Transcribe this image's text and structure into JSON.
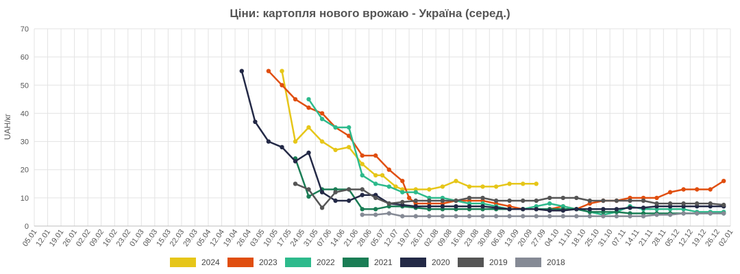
{
  "chart_data": {
    "type": "line",
    "title": "Ціни: картопля нового врожаю - Україна (серед.)",
    "ylabel": "UAH/кг",
    "ylim": [
      0,
      70
    ],
    "yticks": [
      0,
      10,
      20,
      30,
      40,
      50,
      60,
      70
    ],
    "grid": true,
    "legend_position": "bottom",
    "categories": [
      "05.01",
      "12.01",
      "19.01",
      "26.01",
      "02.02",
      "09.02",
      "16.02",
      "23.02",
      "01.03",
      "08.03",
      "15.03",
      "22.03",
      "29.03",
      "05.04",
      "12.04",
      "19.04",
      "26.04",
      "03.05",
      "10.05",
      "17.05",
      "24.05",
      "31.05",
      "07.06",
      "14.06",
      "21.06",
      "28.06",
      "05.07",
      "12.07",
      "19.07",
      "26.07",
      "02.08",
      "09.08",
      "16.08",
      "23.08",
      "30.08",
      "06.09",
      "13.09",
      "20.09",
      "27.09",
      "04.10",
      "11.10",
      "18.10",
      "25.10",
      "31.10",
      "07.11",
      "14.11",
      "21.11",
      "28.11",
      "05.12",
      "12.12",
      "19.12",
      "26.12",
      "02.01"
    ],
    "series": [
      {
        "name": "2024",
        "color": "#e6c619",
        "points": [
          [
            18.5,
            55
          ],
          [
            19.5,
            30
          ],
          [
            20.5,
            35
          ],
          [
            21.5,
            30
          ],
          [
            22.5,
            27
          ],
          [
            23.5,
            28
          ],
          [
            24.5,
            22
          ],
          [
            25.5,
            18
          ],
          [
            26,
            18
          ],
          [
            27,
            14
          ],
          [
            27.5,
            13
          ],
          [
            28.5,
            13
          ],
          [
            29.5,
            13
          ],
          [
            30.5,
            14
          ],
          [
            31.5,
            16
          ],
          [
            32.5,
            14
          ],
          [
            33.5,
            14
          ],
          [
            34.5,
            14
          ],
          [
            35.5,
            15
          ],
          [
            36.5,
            15
          ],
          [
            37.5,
            15
          ]
        ]
      },
      {
        "name": "2023",
        "color": "#e04e0f",
        "points": [
          [
            17.5,
            55
          ],
          [
            18.5,
            50
          ],
          [
            19.5,
            45
          ],
          [
            20.5,
            42
          ],
          [
            21.5,
            40
          ],
          [
            22.5,
            35
          ],
          [
            23.5,
            32
          ],
          [
            24.5,
            25
          ],
          [
            25.5,
            25
          ],
          [
            26.5,
            20
          ],
          [
            27.5,
            16
          ],
          [
            28,
            10
          ],
          [
            28.5,
            8
          ],
          [
            29.5,
            8
          ],
          [
            30.5,
            8
          ],
          [
            31.5,
            9
          ],
          [
            32.5,
            9
          ],
          [
            33.5,
            9
          ],
          [
            34.5,
            8
          ],
          [
            35.5,
            7
          ],
          [
            36.5,
            6
          ],
          [
            37.5,
            6
          ],
          [
            38.5,
            6
          ],
          [
            39.5,
            7
          ],
          [
            40.5,
            6
          ],
          [
            41.5,
            8
          ],
          [
            42.5,
            9
          ],
          [
            43.5,
            9
          ],
          [
            44.5,
            10
          ],
          [
            45.5,
            10
          ],
          [
            46.5,
            10
          ],
          [
            47.5,
            12
          ],
          [
            48.5,
            13
          ],
          [
            49.5,
            13
          ],
          [
            50.5,
            13
          ],
          [
            51.5,
            16
          ]
        ]
      },
      {
        "name": "2022",
        "color": "#2dba8c",
        "points": [
          [
            20.5,
            45
          ],
          [
            21.5,
            38
          ],
          [
            22.5,
            35
          ],
          [
            23.5,
            35
          ],
          [
            24.5,
            18
          ],
          [
            25.5,
            15
          ],
          [
            26.5,
            14
          ],
          [
            27.5,
            12
          ],
          [
            28.5,
            12
          ],
          [
            29.5,
            10
          ],
          [
            30.5,
            10
          ],
          [
            31.5,
            9
          ],
          [
            32.5,
            8
          ],
          [
            33.5,
            8
          ],
          [
            34.5,
            7
          ],
          [
            35.5,
            6
          ],
          [
            36.5,
            6
          ],
          [
            37.5,
            7
          ],
          [
            38.5,
            8
          ],
          [
            39.5,
            7
          ],
          [
            40.5,
            6
          ],
          [
            41.5,
            5
          ],
          [
            42.5,
            4
          ],
          [
            43.5,
            5
          ],
          [
            44.5,
            7
          ],
          [
            45.5,
            6
          ],
          [
            46.5,
            6
          ],
          [
            47.5,
            6
          ],
          [
            48.5,
            6
          ],
          [
            49.5,
            5
          ],
          [
            50.5,
            5
          ],
          [
            51.5,
            5
          ]
        ]
      },
      {
        "name": "2021",
        "color": "#1a7d55",
        "points": [
          [
            19.5,
            24
          ],
          [
            20.5,
            10.5
          ],
          [
            21.5,
            13
          ],
          [
            22.5,
            13
          ],
          [
            23.5,
            13
          ],
          [
            24.5,
            6
          ],
          [
            25.5,
            6
          ],
          [
            26.5,
            7
          ],
          [
            27.5,
            7
          ],
          [
            28.5,
            6.5
          ],
          [
            29.5,
            6
          ],
          [
            30.5,
            6
          ],
          [
            31.5,
            6
          ],
          [
            32.5,
            6
          ],
          [
            33.5,
            6
          ],
          [
            34.5,
            6
          ],
          [
            35.5,
            6
          ],
          [
            36.5,
            6
          ],
          [
            37.5,
            6
          ],
          [
            38.5,
            6
          ],
          [
            39.5,
            6
          ],
          [
            40.5,
            6
          ],
          [
            41.5,
            5
          ],
          [
            42.5,
            5
          ],
          [
            43.5,
            5
          ],
          [
            44.5,
            4.5
          ],
          [
            45.5,
            4.5
          ],
          [
            46.5,
            4.5
          ],
          [
            47.5,
            4.5
          ],
          [
            48.5,
            4.5
          ],
          [
            49.5,
            4.5
          ],
          [
            50.5,
            4.5
          ],
          [
            51.5,
            4.5
          ]
        ]
      },
      {
        "name": "2020",
        "color": "#232946",
        "points": [
          [
            15.5,
            55
          ],
          [
            16.5,
            37
          ],
          [
            17.5,
            30
          ],
          [
            18.5,
            28
          ],
          [
            19.5,
            23
          ],
          [
            20.5,
            26
          ],
          [
            21.5,
            12
          ],
          [
            22.5,
            9
          ],
          [
            23.5,
            9
          ],
          [
            24.5,
            11
          ],
          [
            25.5,
            11
          ],
          [
            26.5,
            8
          ],
          [
            27.5,
            7.5
          ],
          [
            28.5,
            7
          ],
          [
            29.5,
            7
          ],
          [
            30.5,
            7
          ],
          [
            31.5,
            7
          ],
          [
            32.5,
            7
          ],
          [
            33.5,
            7
          ],
          [
            34.5,
            6.5
          ],
          [
            35.5,
            6
          ],
          [
            36.5,
            6
          ],
          [
            37.5,
            6
          ],
          [
            38.5,
            5.5
          ],
          [
            39.5,
            5.5
          ],
          [
            40.5,
            6
          ],
          [
            41.5,
            6
          ],
          [
            42.5,
            6
          ],
          [
            43.5,
            6
          ],
          [
            44.5,
            6.5
          ],
          [
            45.5,
            6.5
          ],
          [
            46.5,
            7
          ],
          [
            47.5,
            7
          ],
          [
            48.5,
            7
          ],
          [
            49.5,
            7
          ],
          [
            50.5,
            7
          ],
          [
            51.5,
            7
          ]
        ]
      },
      {
        "name": "2019",
        "color": "#555555",
        "points": [
          [
            19.5,
            15
          ],
          [
            20.5,
            13
          ],
          [
            21.5,
            6.5
          ],
          [
            22.5,
            12
          ],
          [
            23.5,
            13
          ],
          [
            24.5,
            13
          ],
          [
            25.5,
            10
          ],
          [
            26.5,
            8
          ],
          [
            27.5,
            8.5
          ],
          [
            28.5,
            9
          ],
          [
            29.5,
            9
          ],
          [
            30.5,
            9
          ],
          [
            31.5,
            9
          ],
          [
            32.5,
            10
          ],
          [
            33.5,
            10
          ],
          [
            34.5,
            9
          ],
          [
            35.5,
            9
          ],
          [
            36.5,
            9
          ],
          [
            37.5,
            9
          ],
          [
            38.5,
            10
          ],
          [
            39.5,
            10
          ],
          [
            40.5,
            10
          ],
          [
            41.5,
            9
          ],
          [
            42.5,
            9
          ],
          [
            43.5,
            9
          ],
          [
            44.5,
            9
          ],
          [
            45.5,
            9
          ],
          [
            46.5,
            8
          ],
          [
            47.5,
            8
          ],
          [
            48.5,
            8
          ],
          [
            49.5,
            8
          ],
          [
            50.5,
            8
          ],
          [
            51.5,
            7.5
          ]
        ]
      },
      {
        "name": "2018",
        "color": "#858a95",
        "points": [
          [
            24.5,
            4
          ],
          [
            25.5,
            4
          ],
          [
            26.5,
            4.5
          ],
          [
            27.5,
            3.5
          ],
          [
            28.5,
            3.5
          ],
          [
            29.5,
            3.5
          ],
          [
            30.5,
            3.5
          ],
          [
            31.5,
            3.5
          ],
          [
            32.5,
            3.5
          ],
          [
            33.5,
            3.5
          ],
          [
            34.5,
            3.5
          ],
          [
            35.5,
            3.5
          ],
          [
            36.5,
            3.5
          ],
          [
            37.5,
            3.5
          ],
          [
            38.5,
            3.5
          ],
          [
            39.5,
            3.5
          ],
          [
            40.5,
            3.5
          ],
          [
            41.5,
            3.5
          ],
          [
            42.5,
            3.5
          ],
          [
            43.5,
            3.5
          ],
          [
            44.5,
            3.5
          ],
          [
            45.5,
            3.5
          ],
          [
            46.5,
            4
          ],
          [
            47.5,
            4
          ],
          [
            48.5,
            4.5
          ],
          [
            49.5,
            4.5
          ],
          [
            50.5,
            4.5
          ],
          [
            51.5,
            4.5
          ]
        ]
      }
    ]
  }
}
